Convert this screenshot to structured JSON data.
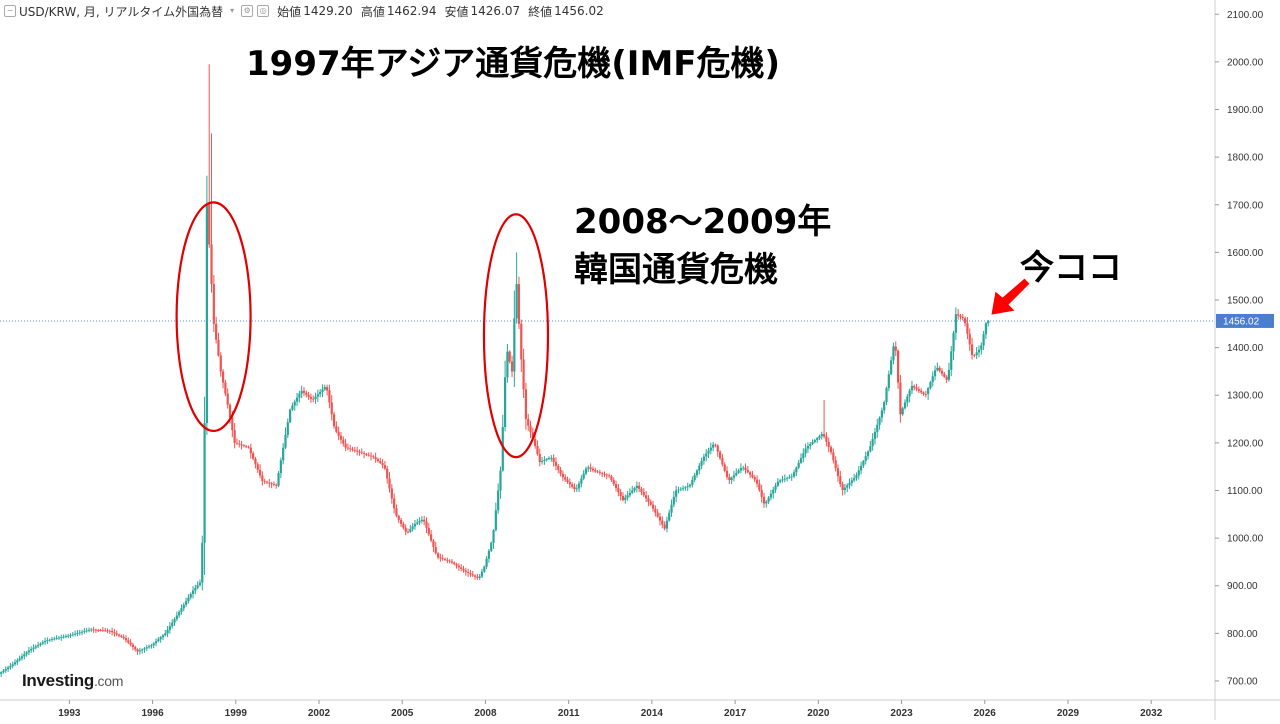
{
  "header": {
    "symbol": "USD/KRW, 月, リアルタイム外国為替",
    "open_label": "始値",
    "open": "1429.20",
    "high_label": "高値",
    "high": "1462.94",
    "low_label": "安値",
    "low": "1426.07",
    "close_label": "終値",
    "close": "1456.02"
  },
  "brand": {
    "name": "Investing",
    "domain": ".com"
  },
  "annotations": {
    "crisis_1997": "1997年アジア通貨危機(IMF危機)",
    "crisis_2008_line1": "2008～2009年",
    "crisis_2008_line2": "韓国通貨危機",
    "now": "今ココ"
  },
  "colors": {
    "up": "#26a69a",
    "down": "#ef5350",
    "ellipse": "#e00000",
    "arrow": "#ff0000",
    "price_line": "#5b8fd6",
    "price_tag": "#4a7fd0"
  },
  "chart_data": {
    "type": "candlestick",
    "series_name": "USD/KRW",
    "last_price": 1456.02,
    "xlim": [
      1990.5,
      2034.3
    ],
    "ylim": [
      660,
      2130
    ],
    "y_ticks": [
      700,
      800,
      900,
      1000,
      1100,
      1200,
      1300,
      1400,
      1500,
      1600,
      1700,
      1800,
      1900,
      2000,
      2100
    ],
    "y_tick_labels": [
      "700.00",
      "800.00",
      "900.00",
      "1000.00",
      "1100.00",
      "1200.00",
      "1300.00",
      "1400.00",
      "1500.00",
      "1600.00",
      "1700.00",
      "1800.00",
      "1900.00",
      "2000.00",
      "2100.00"
    ],
    "x_ticks": [
      1993,
      1996,
      1999,
      2002,
      2005,
      2008,
      2011,
      2014,
      2017,
      2020,
      2023,
      2026,
      2029,
      2032
    ],
    "x_tick_labels": [
      "1993",
      "1996",
      "1999",
      "2002",
      "2005",
      "2008",
      "2011",
      "2014",
      "2017",
      "2020",
      "2023",
      "2026",
      "2029",
      "2032"
    ],
    "price_keypoints": [
      [
        1990.5,
        715
      ],
      [
        1991.0,
        735
      ],
      [
        1991.6,
        765
      ],
      [
        1992.2,
        785
      ],
      [
        1993.0,
        795
      ],
      [
        1993.8,
        808
      ],
      [
        1994.5,
        805
      ],
      [
        1995.0,
        790
      ],
      [
        1995.5,
        762
      ],
      [
        1996.0,
        775
      ],
      [
        1996.5,
        800
      ],
      [
        1997.0,
        845
      ],
      [
        1997.5,
        890
      ],
      [
        1997.8,
        910
      ],
      [
        1997.9,
        1150
      ],
      [
        1998.0,
        1700
      ],
      [
        1998.1,
        1600
      ],
      [
        1998.25,
        1450
      ],
      [
        1998.5,
        1350
      ],
      [
        1998.75,
        1280
      ],
      [
        1999.0,
        1200
      ],
      [
        1999.5,
        1190
      ],
      [
        2000.0,
        1120
      ],
      [
        2000.5,
        1110
      ],
      [
        2001.0,
        1270
      ],
      [
        2001.4,
        1310
      ],
      [
        2001.8,
        1290
      ],
      [
        2002.3,
        1320
      ],
      [
        2002.6,
        1230
      ],
      [
        2003.0,
        1190
      ],
      [
        2003.5,
        1180
      ],
      [
        2004.0,
        1170
      ],
      [
        2004.4,
        1150
      ],
      [
        2004.8,
        1050
      ],
      [
        2005.2,
        1010
      ],
      [
        2005.5,
        1030
      ],
      [
        2005.8,
        1040
      ],
      [
        2006.3,
        960
      ],
      [
        2006.8,
        950
      ],
      [
        2007.3,
        930
      ],
      [
        2007.8,
        915
      ],
      [
        2008.0,
        940
      ],
      [
        2008.3,
        1000
      ],
      [
        2008.6,
        1150
      ],
      [
        2008.8,
        1400
      ],
      [
        2009.0,
        1350
      ],
      [
        2009.15,
        1550
      ],
      [
        2009.3,
        1400
      ],
      [
        2009.5,
        1250
      ],
      [
        2009.8,
        1200
      ],
      [
        2010.0,
        1160
      ],
      [
        2010.4,
        1170
      ],
      [
        2010.8,
        1130
      ],
      [
        2011.3,
        1100
      ],
      [
        2011.7,
        1150
      ],
      [
        2012.0,
        1140
      ],
      [
        2012.5,
        1130
      ],
      [
        2013.0,
        1080
      ],
      [
        2013.5,
        1110
      ],
      [
        2014.0,
        1070
      ],
      [
        2014.5,
        1020
      ],
      [
        2014.9,
        1100
      ],
      [
        2015.4,
        1110
      ],
      [
        2015.9,
        1170
      ],
      [
        2016.3,
        1200
      ],
      [
        2016.8,
        1120
      ],
      [
        2017.3,
        1150
      ],
      [
        2017.8,
        1120
      ],
      [
        2018.1,
        1070
      ],
      [
        2018.6,
        1120
      ],
      [
        2019.1,
        1130
      ],
      [
        2019.6,
        1190
      ],
      [
        2020.2,
        1220
      ],
      [
        2020.5,
        1180
      ],
      [
        2020.9,
        1100
      ],
      [
        2021.4,
        1130
      ],
      [
        2021.9,
        1190
      ],
      [
        2022.4,
        1280
      ],
      [
        2022.8,
        1420
      ],
      [
        2023.0,
        1260
      ],
      [
        2023.4,
        1320
      ],
      [
        2023.9,
        1300
      ],
      [
        2024.3,
        1360
      ],
      [
        2024.7,
        1330
      ],
      [
        2025.0,
        1470
      ],
      [
        2025.3,
        1460
      ],
      [
        2025.6,
        1380
      ],
      [
        2025.9,
        1400
      ],
      [
        2026.1,
        1456
      ]
    ],
    "wick_extremes": [
      [
        1997.97,
        1995
      ],
      [
        1998.05,
        1850
      ],
      [
        1998.1,
        1760
      ],
      [
        2009.12,
        1600
      ],
      [
        2009.0,
        1520
      ],
      [
        2020.2,
        1290
      ]
    ]
  }
}
